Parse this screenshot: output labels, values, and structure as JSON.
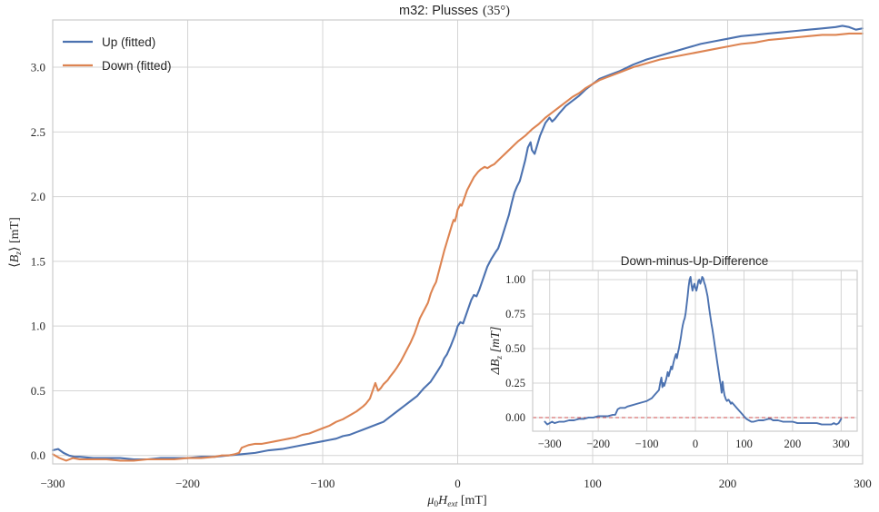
{
  "figure": {
    "title": "m32: Plusses",
    "title_math": "(35°)"
  },
  "legend": {
    "items": [
      {
        "label": "Up (fitted)",
        "color": "#4C72B0"
      },
      {
        "label": "Down (fitted)",
        "color": "#DD8452"
      }
    ]
  },
  "labels": {
    "main_ylabel": {
      "open": "⟨",
      "symbol": "B",
      "subscript": "z",
      "close": "⟩",
      "unit": " [mT]"
    },
    "main_xlabel": {
      "mu": "μ",
      "mu_sub": "0",
      "symbol": "H",
      "subscript": "ext",
      "unit": " [mT]"
    },
    "inset_ylabel": {
      "delta": "Δ",
      "symbol": "B",
      "subscript": "z",
      "unit": " [mT]"
    }
  },
  "chart_data": [
    {
      "type": "line",
      "role": "main",
      "title": "m32: Plusses (35°)",
      "xlabel": "μ₀H_ext [mT]",
      "ylabel": "⟨B_z⟩ [mT]",
      "xlim": [
        -300,
        300
      ],
      "ylim": [
        -0.065,
        3.365
      ],
      "xticks": [
        -300,
        -200,
        -100,
        0,
        100,
        200,
        300
      ],
      "yticks": [
        0.0,
        0.5,
        1.0,
        1.5,
        2.0,
        2.5,
        3.0
      ],
      "grid": true,
      "legend_position": "upper left",
      "series": [
        {
          "name": "Up (fitted)",
          "color": "#4C72B0",
          "x": [
            -300,
            -296,
            -292,
            -288,
            -284,
            -280,
            -270,
            -260,
            -250,
            -240,
            -230,
            -220,
            -210,
            -200,
            -190,
            -180,
            -170,
            -160,
            -150,
            -140,
            -130,
            -120,
            -110,
            -100,
            -95,
            -90,
            -85,
            -80,
            -75,
            -70,
            -65,
            -60,
            -55,
            -50,
            -45,
            -40,
            -35,
            -30,
            -25,
            -20,
            -15,
            -12,
            -10,
            -8,
            -5,
            -2,
            0,
            2,
            4,
            6,
            8,
            10,
            12,
            14,
            16,
            18,
            20,
            22,
            25,
            28,
            30,
            32,
            35,
            38,
            40,
            42,
            44,
            46,
            48,
            50,
            52,
            54,
            55,
            57,
            59,
            61,
            63,
            65,
            68,
            70,
            72,
            75,
            80,
            85,
            90,
            95,
            100,
            105,
            110,
            115,
            120,
            130,
            140,
            150,
            160,
            170,
            180,
            190,
            200,
            210,
            220,
            230,
            240,
            250,
            260,
            270,
            280,
            285,
            290,
            295,
            300
          ],
          "y": [
            0.04,
            0.05,
            0.02,
            0.0,
            -0.01,
            -0.01,
            -0.02,
            -0.02,
            -0.02,
            -0.03,
            -0.03,
            -0.02,
            -0.02,
            -0.02,
            -0.01,
            -0.01,
            0.0,
            0.01,
            0.02,
            0.04,
            0.05,
            0.07,
            0.09,
            0.11,
            0.12,
            0.13,
            0.15,
            0.16,
            0.18,
            0.2,
            0.22,
            0.24,
            0.26,
            0.3,
            0.34,
            0.38,
            0.42,
            0.46,
            0.52,
            0.57,
            0.65,
            0.7,
            0.75,
            0.78,
            0.85,
            0.93,
            1.0,
            1.03,
            1.02,
            1.08,
            1.14,
            1.2,
            1.24,
            1.23,
            1.28,
            1.34,
            1.4,
            1.46,
            1.52,
            1.57,
            1.6,
            1.66,
            1.76,
            1.86,
            1.95,
            2.03,
            2.08,
            2.12,
            2.2,
            2.28,
            2.38,
            2.42,
            2.36,
            2.33,
            2.4,
            2.47,
            2.52,
            2.57,
            2.61,
            2.58,
            2.6,
            2.64,
            2.7,
            2.74,
            2.78,
            2.83,
            2.87,
            2.91,
            2.93,
            2.95,
            2.97,
            3.02,
            3.06,
            3.09,
            3.12,
            3.15,
            3.18,
            3.2,
            3.22,
            3.24,
            3.25,
            3.26,
            3.27,
            3.28,
            3.29,
            3.3,
            3.31,
            3.32,
            3.31,
            3.29,
            3.3
          ]
        },
        {
          "name": "Down (fitted)",
          "color": "#DD8452",
          "x": [
            -300,
            -295,
            -290,
            -285,
            -280,
            -270,
            -260,
            -250,
            -240,
            -230,
            -220,
            -210,
            -200,
            -190,
            -180,
            -175,
            -170,
            -165,
            -162,
            -160,
            -155,
            -150,
            -145,
            -140,
            -135,
            -130,
            -125,
            -120,
            -115,
            -110,
            -105,
            -100,
            -95,
            -90,
            -85,
            -80,
            -75,
            -70,
            -68,
            -65,
            -63,
            -61,
            -59,
            -57,
            -55,
            -52,
            -50,
            -47,
            -45,
            -42,
            -40,
            -37,
            -35,
            -32,
            -30,
            -28,
            -26,
            -24,
            -22,
            -20,
            -18,
            -16,
            -14,
            -12,
            -10,
            -8,
            -6,
            -4,
            -3,
            -2,
            -1,
            0,
            2,
            3,
            5,
            7,
            10,
            12,
            15,
            17,
            20,
            22,
            25,
            27,
            30,
            33,
            35,
            40,
            45,
            50,
            55,
            60,
            65,
            70,
            75,
            80,
            85,
            90,
            95,
            100,
            105,
            110,
            120,
            130,
            140,
            150,
            160,
            170,
            180,
            190,
            200,
            210,
            220,
            230,
            240,
            250,
            260,
            270,
            280,
            290,
            300
          ],
          "y": [
            0.01,
            -0.02,
            -0.04,
            -0.02,
            -0.03,
            -0.03,
            -0.03,
            -0.04,
            -0.04,
            -0.03,
            -0.03,
            -0.03,
            -0.02,
            -0.02,
            -0.01,
            0.0,
            0.0,
            0.01,
            0.02,
            0.06,
            0.08,
            0.09,
            0.09,
            0.1,
            0.11,
            0.12,
            0.13,
            0.14,
            0.16,
            0.17,
            0.19,
            0.21,
            0.23,
            0.26,
            0.28,
            0.31,
            0.34,
            0.38,
            0.4,
            0.44,
            0.5,
            0.56,
            0.5,
            0.52,
            0.55,
            0.58,
            0.61,
            0.65,
            0.68,
            0.73,
            0.77,
            0.83,
            0.87,
            0.94,
            1.0,
            1.06,
            1.1,
            1.14,
            1.18,
            1.25,
            1.3,
            1.34,
            1.42,
            1.5,
            1.58,
            1.65,
            1.72,
            1.79,
            1.82,
            1.81,
            1.85,
            1.9,
            1.94,
            1.93,
            1.99,
            2.05,
            2.11,
            2.15,
            2.19,
            2.21,
            2.23,
            2.22,
            2.24,
            2.25,
            2.28,
            2.31,
            2.33,
            2.38,
            2.43,
            2.47,
            2.52,
            2.56,
            2.61,
            2.65,
            2.69,
            2.73,
            2.77,
            2.8,
            2.84,
            2.87,
            2.9,
            2.92,
            2.96,
            3.0,
            3.03,
            3.06,
            3.08,
            3.1,
            3.12,
            3.14,
            3.16,
            3.18,
            3.19,
            3.21,
            3.22,
            3.23,
            3.24,
            3.25,
            3.25,
            3.26,
            3.26
          ]
        }
      ]
    },
    {
      "type": "line",
      "role": "inset",
      "title": "Down-minus-Up-Difference",
      "ylabel": "ΔB_z [mT]",
      "xlim": [
        -335,
        333
      ],
      "ylim": [
        -0.099,
        1.066
      ],
      "xticks": [
        -300,
        -200,
        -100,
        0,
        100,
        200,
        300
      ],
      "yticks": [
        0.0,
        0.25,
        0.5,
        0.75,
        1.0
      ],
      "grid": true,
      "zero_line": {
        "y": 0,
        "color": "#cc4c4c",
        "style": "dashed"
      },
      "series": [
        {
          "name": "Down minus Up",
          "color": "#4C72B0",
          "x": [
            -310,
            -305,
            -300,
            -295,
            -290,
            -280,
            -270,
            -260,
            -250,
            -240,
            -230,
            -220,
            -210,
            -200,
            -190,
            -180,
            -170,
            -165,
            -160,
            -155,
            -150,
            -145,
            -140,
            -130,
            -120,
            -110,
            -100,
            -95,
            -90,
            -85,
            -80,
            -75,
            -72,
            -70,
            -68,
            -66,
            -64,
            -60,
            -57,
            -55,
            -52,
            -50,
            -48,
            -45,
            -42,
            -40,
            -38,
            -36,
            -34,
            -32,
            -30,
            -28,
            -26,
            -24,
            -22,
            -20,
            -18,
            -16,
            -14,
            -12,
            -10,
            -8,
            -6,
            -4,
            -2,
            0,
            2,
            4,
            6,
            8,
            10,
            12,
            14,
            16,
            18,
            20,
            22,
            25,
            28,
            30,
            33,
            35,
            38,
            40,
            43,
            45,
            48,
            50,
            52,
            54,
            56,
            58,
            60,
            63,
            65,
            68,
            70,
            73,
            75,
            80,
            85,
            90,
            95,
            100,
            105,
            110,
            115,
            120,
            130,
            140,
            150,
            155,
            160,
            170,
            180,
            190,
            200,
            210,
            220,
            230,
            240,
            250,
            260,
            270,
            280,
            285,
            290,
            295,
            300
          ],
          "y": [
            -0.03,
            -0.05,
            -0.04,
            -0.03,
            -0.04,
            -0.03,
            -0.03,
            -0.02,
            -0.02,
            -0.01,
            -0.01,
            0.0,
            0.0,
            0.01,
            0.01,
            0.01,
            0.02,
            0.02,
            0.06,
            0.07,
            0.07,
            0.07,
            0.08,
            0.09,
            0.1,
            0.11,
            0.12,
            0.13,
            0.14,
            0.16,
            0.18,
            0.2,
            0.26,
            0.29,
            0.22,
            0.25,
            0.23,
            0.28,
            0.33,
            0.3,
            0.34,
            0.37,
            0.35,
            0.4,
            0.44,
            0.46,
            0.43,
            0.47,
            0.5,
            0.54,
            0.58,
            0.63,
            0.67,
            0.7,
            0.72,
            0.76,
            0.82,
            0.88,
            0.95,
            1.0,
            1.02,
            0.96,
            0.92,
            0.95,
            0.97,
            0.94,
            0.92,
            0.95,
            0.99,
            1.0,
            0.97,
            0.99,
            1.02,
            1.01,
            0.98,
            0.96,
            0.93,
            0.88,
            0.8,
            0.75,
            0.68,
            0.64,
            0.57,
            0.52,
            0.45,
            0.4,
            0.33,
            0.28,
            0.24,
            0.18,
            0.26,
            0.2,
            0.16,
            0.13,
            0.12,
            0.13,
            0.12,
            0.1,
            0.11,
            0.09,
            0.07,
            0.05,
            0.03,
            0.01,
            -0.01,
            -0.02,
            -0.03,
            -0.03,
            -0.02,
            -0.02,
            -0.01,
            -0.01,
            -0.02,
            -0.02,
            -0.03,
            -0.03,
            -0.03,
            -0.04,
            -0.04,
            -0.04,
            -0.04,
            -0.04,
            -0.05,
            -0.05,
            -0.05,
            -0.04,
            -0.05,
            -0.04,
            -0.01
          ]
        }
      ]
    }
  ]
}
